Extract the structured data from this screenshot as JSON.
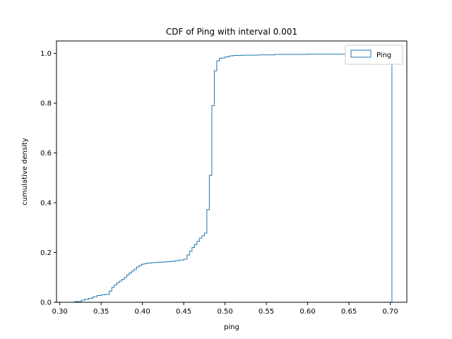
{
  "chart_data": {
    "type": "line",
    "title": "CDF of Ping with interval 0.001",
    "xlabel": "ping",
    "ylabel": "cumulative density",
    "xlim": [
      0.296,
      0.72
    ],
    "ylim": [
      0.0,
      1.05
    ],
    "xticks": [
      "0.30",
      "0.35",
      "0.40",
      "0.45",
      "0.50",
      "0.55",
      "0.60",
      "0.65",
      "0.70"
    ],
    "xtick_values": [
      0.3,
      0.35,
      0.4,
      0.45,
      0.5,
      0.55,
      0.6,
      0.65,
      0.7
    ],
    "yticks": [
      "0.0",
      "0.2",
      "0.4",
      "0.6",
      "0.8",
      "1.0"
    ],
    "ytick_values": [
      0.0,
      0.2,
      0.4,
      0.6,
      0.8,
      1.0
    ],
    "grid": false,
    "legend_position": "top-right",
    "color": "#1f77b4",
    "series": [
      {
        "name": "Ping",
        "drawstyle": "step-post",
        "x": [
          0.315,
          0.318,
          0.326,
          0.33,
          0.335,
          0.34,
          0.345,
          0.35,
          0.355,
          0.36,
          0.363,
          0.366,
          0.369,
          0.372,
          0.375,
          0.378,
          0.381,
          0.384,
          0.387,
          0.39,
          0.393,
          0.396,
          0.399,
          0.402,
          0.405,
          0.41,
          0.415,
          0.42,
          0.425,
          0.43,
          0.435,
          0.44,
          0.445,
          0.45,
          0.454,
          0.457,
          0.46,
          0.463,
          0.466,
          0.469,
          0.472,
          0.475,
          0.478,
          0.481,
          0.484,
          0.487,
          0.49,
          0.493,
          0.496,
          0.5,
          0.505,
          0.51,
          0.52,
          0.53,
          0.54,
          0.56,
          0.6,
          0.65,
          0.702
        ],
        "y": [
          0.0,
          0.003,
          0.008,
          0.012,
          0.016,
          0.022,
          0.027,
          0.03,
          0.032,
          0.045,
          0.06,
          0.07,
          0.078,
          0.085,
          0.092,
          0.1,
          0.11,
          0.118,
          0.126,
          0.133,
          0.142,
          0.148,
          0.153,
          0.155,
          0.157,
          0.159,
          0.16,
          0.161,
          0.162,
          0.163,
          0.165,
          0.167,
          0.17,
          0.173,
          0.19,
          0.205,
          0.22,
          0.232,
          0.245,
          0.258,
          0.267,
          0.278,
          0.372,
          0.51,
          0.79,
          0.93,
          0.97,
          0.98,
          0.982,
          0.986,
          0.99,
          0.992,
          0.993,
          0.993,
          0.994,
          0.996,
          0.997,
          0.997,
          1.0
        ]
      }
    ]
  }
}
